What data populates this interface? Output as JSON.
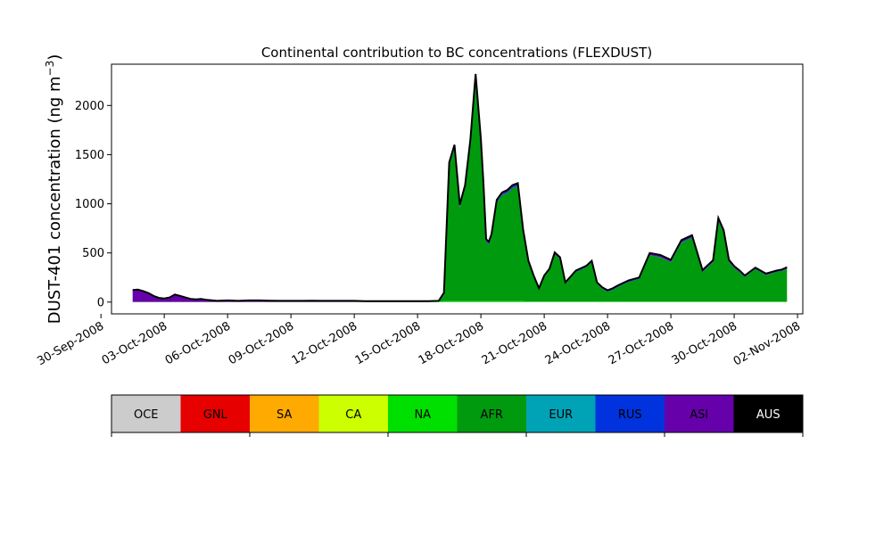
{
  "chart_data": {
    "type": "area",
    "title": "Continental contribution to BC concentrations (FLEXDUST)",
    "ylabel_main": "DUST-401 concentration (ng m",
    "ylabel_sup": "−3",
    "ylabel_close": ")",
    "xlabel": "",
    "ylim": [
      -120,
      2420
    ],
    "yticks": [
      0,
      500,
      1000,
      1500,
      2000
    ],
    "xlim": [
      "2008-09-30T12:00",
      "2008-11-02T06:00"
    ],
    "xticks": [
      {
        "date": "2008-09-30",
        "label": "30-Sep-2008"
      },
      {
        "date": "2008-10-03",
        "label": "03-Oct-2008"
      },
      {
        "date": "2008-10-06",
        "label": "06-Oct-2008"
      },
      {
        "date": "2008-10-09",
        "label": "09-Oct-2008"
      },
      {
        "date": "2008-10-12",
        "label": "12-Oct-2008"
      },
      {
        "date": "2008-10-15",
        "label": "15-Oct-2008"
      },
      {
        "date": "2008-10-18",
        "label": "18-Oct-2008"
      },
      {
        "date": "2008-10-21",
        "label": "21-Oct-2008"
      },
      {
        "date": "2008-10-24",
        "label": "24-Oct-2008"
      },
      {
        "date": "2008-10-27",
        "label": "27-Oct-2008"
      },
      {
        "date": "2008-10-30",
        "label": "30-Oct-2008"
      },
      {
        "date": "2008-11-02",
        "label": "02-Nov-2008"
      }
    ],
    "x": [
      "2008-10-01T12:00",
      "2008-10-01T18:00",
      "2008-10-02T00:00",
      "2008-10-02T06:00",
      "2008-10-02T12:00",
      "2008-10-02T18:00",
      "2008-10-03T00:00",
      "2008-10-03T06:00",
      "2008-10-03T12:00",
      "2008-10-03T18:00",
      "2008-10-04T00:00",
      "2008-10-04T06:00",
      "2008-10-04T12:00",
      "2008-10-04T18:00",
      "2008-10-05T00:00",
      "2008-10-05T12:00",
      "2008-10-06T00:00",
      "2008-10-06T12:00",
      "2008-10-07T00:00",
      "2008-10-07T12:00",
      "2008-10-08T00:00",
      "2008-10-08T12:00",
      "2008-10-09T00:00",
      "2008-10-09T12:00",
      "2008-10-10T00:00",
      "2008-10-10T12:00",
      "2008-10-11T00:00",
      "2008-10-11T12:00",
      "2008-10-12T00:00",
      "2008-10-12T12:00",
      "2008-10-13T00:00",
      "2008-10-13T12:00",
      "2008-10-14T00:00",
      "2008-10-14T12:00",
      "2008-10-15T00:00",
      "2008-10-15T12:00",
      "2008-10-16T00:00",
      "2008-10-16T06:00",
      "2008-10-16T12:00",
      "2008-10-16T18:00",
      "2008-10-17T00:00",
      "2008-10-17T03:00",
      "2008-10-17T06:00",
      "2008-10-17T12:00",
      "2008-10-17T18:00",
      "2008-10-18T00:00",
      "2008-10-18T03:00",
      "2008-10-18T06:00",
      "2008-10-18T09:00",
      "2008-10-18T12:00",
      "2008-10-18T18:00",
      "2008-10-19T00:00",
      "2008-10-19T06:00",
      "2008-10-19T12:00",
      "2008-10-19T18:00",
      "2008-10-20T00:00",
      "2008-10-20T06:00",
      "2008-10-20T12:00",
      "2008-10-20T18:00",
      "2008-10-21T00:00",
      "2008-10-21T06:00",
      "2008-10-21T12:00",
      "2008-10-21T18:00",
      "2008-10-22T00:00",
      "2008-10-22T12:00",
      "2008-10-23T00:00",
      "2008-10-23T06:00",
      "2008-10-23T12:00",
      "2008-10-23T18:00",
      "2008-10-24T00:00",
      "2008-10-24T06:00",
      "2008-10-24T12:00",
      "2008-10-25T00:00",
      "2008-10-25T12:00",
      "2008-10-26T00:00",
      "2008-10-26T12:00",
      "2008-10-27T00:00",
      "2008-10-27T12:00",
      "2008-10-28T00:00",
      "2008-10-28T12:00",
      "2008-10-29T00:00",
      "2008-10-29T06:00",
      "2008-10-29T12:00",
      "2008-10-29T18:00",
      "2008-10-30T00:00",
      "2008-10-30T06:00",
      "2008-10-30T12:00",
      "2008-10-31T00:00",
      "2008-10-31T12:00",
      "2008-11-01T00:00",
      "2008-11-01T06:00",
      "2008-11-01T12:00"
    ],
    "series": [
      {
        "name": "OCE",
        "color": "#cccccc",
        "values": [
          0,
          0,
          0,
          0,
          0,
          0,
          0,
          0,
          0,
          0,
          0,
          0,
          0,
          0,
          0,
          0,
          0,
          0,
          0,
          0,
          0,
          0,
          0,
          0,
          0,
          0,
          0,
          0,
          0,
          0,
          0,
          0,
          0,
          0,
          0,
          0,
          0,
          0,
          0,
          0,
          0,
          0,
          0,
          0,
          0,
          0,
          0,
          0,
          0,
          0,
          0,
          0,
          0,
          0,
          0,
          0,
          0,
          0,
          0,
          0,
          0,
          0,
          0,
          0,
          0,
          0,
          0,
          0,
          0,
          0,
          0,
          0,
          0,
          0,
          0,
          0,
          0,
          0,
          0,
          0,
          0,
          0,
          0,
          0,
          0,
          0,
          0,
          0,
          0,
          0,
          0,
          0
        ]
      },
      {
        "name": "GNL",
        "color": "#e60000",
        "values": [
          0,
          0,
          0,
          0,
          0,
          0,
          0,
          0,
          0,
          0,
          0,
          0,
          0,
          0,
          0,
          0,
          0,
          0,
          0,
          0,
          0,
          0,
          0,
          0,
          0,
          0,
          0,
          0,
          0,
          0,
          0,
          0,
          0,
          0,
          0,
          0,
          0,
          0,
          0,
          0,
          0,
          0,
          0,
          0,
          0,
          0,
          0,
          0,
          0,
          0,
          0,
          0,
          0,
          0,
          0,
          0,
          0,
          0,
          0,
          0,
          0,
          0,
          0,
          0,
          0,
          0,
          0,
          0,
          0,
          0,
          0,
          0,
          0,
          0,
          0,
          0,
          0,
          0,
          0,
          0,
          0,
          0,
          0,
          0,
          0,
          0,
          0,
          0,
          0,
          0,
          0,
          0
        ]
      },
      {
        "name": "SA",
        "color": "#ffaa00",
        "values": [
          0,
          0,
          0,
          0,
          0,
          0,
          0,
          0,
          0,
          0,
          0,
          0,
          0,
          0,
          0,
          0,
          0,
          0,
          0,
          0,
          0,
          0,
          0,
          0,
          0,
          0,
          0,
          0,
          0,
          0,
          0,
          0,
          0,
          0,
          0,
          0,
          0,
          0,
          0,
          0,
          0,
          0,
          0,
          0,
          0,
          0,
          0,
          0,
          0,
          0,
          0,
          0,
          0,
          0,
          0,
          0,
          0,
          0,
          0,
          0,
          0,
          0,
          0,
          0,
          0,
          0,
          0,
          0,
          0,
          0,
          0,
          0,
          0,
          0,
          0,
          0,
          0,
          0,
          0,
          0,
          0,
          0,
          0,
          0,
          0,
          0,
          0,
          0,
          0,
          0,
          0,
          0
        ]
      },
      {
        "name": "CA",
        "color": "#ccff00",
        "values": [
          0,
          0,
          0,
          0,
          0,
          0,
          0,
          0,
          0,
          0,
          0,
          0,
          0,
          0,
          0,
          0,
          0,
          0,
          0,
          0,
          0,
          0,
          0,
          0,
          0,
          0,
          0,
          0,
          0,
          0,
          0,
          0,
          0,
          0,
          0,
          0,
          0,
          0,
          0,
          0,
          0,
          0,
          0,
          0,
          0,
          0,
          0,
          0,
          0,
          0,
          0,
          0,
          0,
          0,
          0,
          0,
          0,
          0,
          0,
          0,
          0,
          0,
          0,
          0,
          0,
          0,
          0,
          0,
          0,
          0,
          0,
          0,
          0,
          0,
          0,
          0,
          0,
          0,
          0,
          0,
          0,
          0,
          0,
          0,
          0,
          0,
          0,
          0,
          0,
          0,
          0,
          0
        ]
      },
      {
        "name": "NA",
        "color": "#00e000",
        "values": [
          2,
          2,
          2,
          2,
          2,
          2,
          2,
          2,
          2,
          2,
          2,
          2,
          2,
          2,
          2,
          2,
          2,
          2,
          2,
          2,
          2,
          2,
          2,
          2,
          2,
          2,
          2,
          2,
          2,
          2,
          2,
          2,
          2,
          2,
          2,
          2,
          5,
          10,
          10,
          10,
          10,
          10,
          10,
          10,
          10,
          10,
          10,
          10,
          10,
          10,
          10,
          10,
          10,
          10,
          10,
          10,
          5,
          5,
          5,
          5,
          5,
          5,
          5,
          5,
          5,
          5,
          5,
          5,
          5,
          5,
          5,
          5,
          5,
          5,
          5,
          5,
          5,
          5,
          5,
          5,
          5,
          5,
          5,
          5,
          5,
          5,
          5,
          5,
          5,
          5,
          5,
          5
        ]
      },
      {
        "name": "AFR",
        "color": "#009a0e",
        "values": [
          0,
          0,
          0,
          0,
          0,
          0,
          0,
          0,
          0,
          0,
          0,
          0,
          0,
          0,
          0,
          0,
          0,
          0,
          0,
          0,
          0,
          0,
          0,
          0,
          0,
          0,
          0,
          0,
          0,
          0,
          0,
          0,
          0,
          0,
          0,
          0,
          1,
          60,
          1380,
          1550,
          950,
          1050,
          1150,
          1600,
          2200,
          1620,
          1150,
          600,
          580,
          650,
          1000,
          1080,
          1100,
          1150,
          1170,
          700,
          400,
          250,
          120,
          250,
          320,
          480,
          430,
          180,
          300,
          350,
          400,
          180,
          130,
          100,
          120,
          150,
          200,
          230,
          470,
          450,
          400,
          600,
          650,
          300,
          400,
          820,
          700,
          400,
          340,
          300,
          250,
          330,
          270,
          300,
          310,
          330
        ]
      },
      {
        "name": "EUR",
        "color": "#00a2b6",
        "values": [
          0,
          0,
          0,
          0,
          0,
          0,
          0,
          0,
          0,
          0,
          0,
          0,
          0,
          0,
          0,
          0,
          0,
          0,
          0,
          0,
          0,
          0,
          0,
          0,
          0,
          0,
          0,
          0,
          0,
          0,
          0,
          0,
          0,
          0,
          0,
          0,
          0,
          0,
          0,
          0,
          0,
          0,
          0,
          0,
          0,
          0,
          0,
          0,
          0,
          0,
          0,
          0,
          0,
          0,
          0,
          0,
          0,
          0,
          0,
          0,
          0,
          0,
          0,
          0,
          0,
          0,
          0,
          0,
          0,
          0,
          0,
          0,
          0,
          0,
          0,
          0,
          0,
          0,
          0,
          0,
          0,
          0,
          0,
          0,
          0,
          0,
          0,
          0,
          0,
          0,
          0,
          0
        ]
      },
      {
        "name": "RUS",
        "color": "#0033dd",
        "values": [
          0,
          0,
          0,
          0,
          0,
          0,
          0,
          0,
          0,
          0,
          0,
          0,
          0,
          0,
          0,
          0,
          0,
          0,
          0,
          0,
          0,
          0,
          0,
          0,
          0,
          0,
          0,
          0,
          0,
          0,
          0,
          0,
          0,
          0,
          0,
          0,
          1,
          5,
          10,
          10,
          10,
          10,
          10,
          10,
          10,
          10,
          10,
          10,
          10,
          10,
          10,
          10,
          10,
          10,
          10,
          10,
          5,
          5,
          5,
          5,
          5,
          5,
          5,
          5,
          5,
          5,
          5,
          5,
          5,
          5,
          5,
          5,
          5,
          5,
          5,
          5,
          5,
          5,
          5,
          5,
          5,
          5,
          5,
          5,
          5,
          5,
          5,
          5,
          5,
          5,
          5,
          5
        ]
      },
      {
        "name": "ASI",
        "color": "#6600aa",
        "values": [
          120,
          125,
          110,
          90,
          60,
          40,
          35,
          45,
          75,
          60,
          45,
          30,
          25,
          30,
          20,
          10,
          15,
          10,
          15,
          15,
          12,
          10,
          10,
          10,
          12,
          10,
          10,
          10,
          10,
          8,
          8,
          8,
          8,
          8,
          8,
          8,
          5,
          20,
          20,
          30,
          20,
          20,
          20,
          30,
          100,
          20,
          20,
          20,
          15,
          20,
          20,
          15,
          20,
          20,
          20,
          15,
          10,
          10,
          10,
          10,
          10,
          15,
          15,
          10,
          10,
          10,
          10,
          10,
          10,
          10,
          10,
          10,
          10,
          10,
          20,
          20,
          20,
          20,
          20,
          15,
          15,
          25,
          20,
          20,
          15,
          12,
          10,
          10,
          10,
          10,
          10,
          15
        ]
      },
      {
        "name": "AUS",
        "color": "#000000",
        "values": [
          0,
          0,
          0,
          0,
          0,
          0,
          0,
          0,
          0,
          0,
          0,
          0,
          0,
          0,
          0,
          0,
          0,
          0,
          0,
          0,
          0,
          0,
          0,
          0,
          0,
          0,
          0,
          0,
          0,
          0,
          0,
          0,
          0,
          0,
          0,
          0,
          0,
          0,
          0,
          0,
          0,
          0,
          0,
          0,
          0,
          0,
          0,
          0,
          0,
          0,
          0,
          0,
          0,
          0,
          0,
          0,
          0,
          0,
          0,
          0,
          0,
          0,
          0,
          0,
          0,
          0,
          0,
          0,
          0,
          0,
          0,
          0,
          0,
          0,
          0,
          0,
          0,
          0,
          0,
          0,
          0,
          0,
          0,
          0,
          0,
          0,
          0,
          0,
          0,
          0,
          0,
          0
        ]
      }
    ],
    "legend": {
      "labels": [
        "OCE",
        "GNL",
        "SA",
        "CA",
        "NA",
        "AFR",
        "EUR",
        "RUS",
        "ASI",
        "AUS"
      ],
      "colors": [
        "#cccccc",
        "#e60000",
        "#ffaa00",
        "#ccff00",
        "#00e000",
        "#009a0e",
        "#00a2b6",
        "#0033dd",
        "#6600aa",
        "#000000"
      ],
      "text_colors": [
        "#000000",
        "#000000",
        "#000000",
        "#000000",
        "#000000",
        "#000000",
        "#000000",
        "#000000",
        "#000000",
        "#ffffff"
      ]
    }
  }
}
